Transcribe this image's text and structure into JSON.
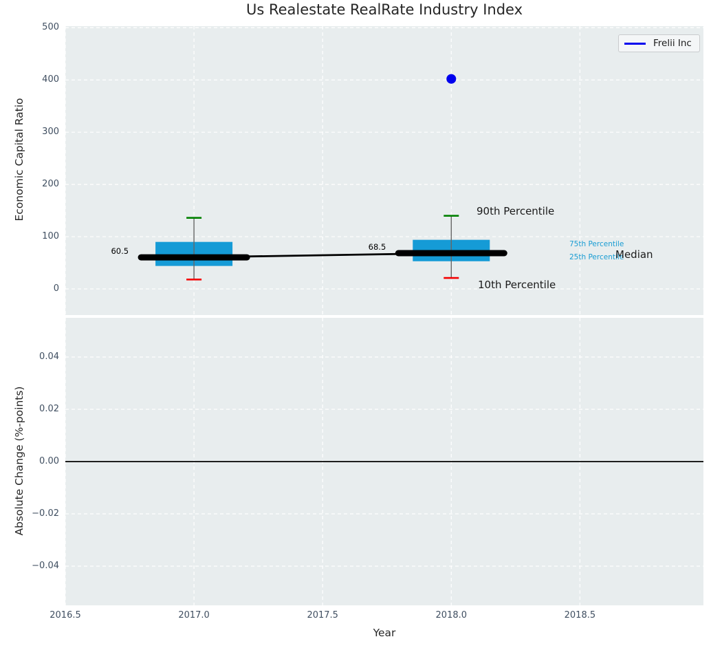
{
  "figure": {
    "title": "Us Realestate RealRate Industry Index",
    "legend": {
      "label": "Frelii Inc"
    }
  },
  "colors": {
    "plot_bg": "#e8edee",
    "grid": "#ffffff",
    "box_fill": "#159bd6",
    "whisker": "#666666",
    "cap_90th": "#008000",
    "cap_10th": "#f40000",
    "median": "#000000",
    "series_blue": "#0000ee",
    "annotation_blue": "#189cd3",
    "annotation_black": "#1a1a1a",
    "tick_text": "#3f4e60",
    "zero_line": "#000000"
  },
  "chart_data": {
    "type": "boxplot-line-combo",
    "title": "Us Realestate RealRate Industry Index",
    "xlabel": "Year",
    "xlim": [
      2016.5,
      2018.98
    ],
    "grid": "on",
    "legend_position": "upper right",
    "xticks": [
      {
        "v": 2016.5,
        "label": "2016.5"
      },
      {
        "v": 2017.0,
        "label": "2017.0"
      },
      {
        "v": 2017.5,
        "label": "2017.5"
      },
      {
        "v": 2018.0,
        "label": "2018.0"
      },
      {
        "v": 2018.5,
        "label": "2018.5"
      }
    ],
    "panels": [
      {
        "ylabel": "Economic Capital Ratio",
        "ylim": [
          -50,
          503
        ],
        "yticks": [
          {
            "v": 0,
            "label": "0"
          },
          {
            "v": 100,
            "label": "100"
          },
          {
            "v": 200,
            "label": "200"
          },
          {
            "v": 300,
            "label": "300"
          },
          {
            "v": 400,
            "label": "400"
          },
          {
            "v": 500,
            "label": "500"
          }
        ],
        "boxplots": [
          {
            "x": 2017,
            "p10": 18,
            "q1": 44,
            "median": 60.5,
            "q3": 90,
            "p90": 136,
            "median_label": "60.5"
          },
          {
            "x": 2018,
            "p10": 21,
            "q1": 53,
            "median": 68.5,
            "q3": 94,
            "p90": 140,
            "median_label": "68.5"
          }
        ],
        "median_trend": [
          {
            "x": 2017,
            "y": 60.5
          },
          {
            "x": 2018,
            "y": 68.5
          }
        ],
        "series": [
          {
            "name": "Frelii Inc",
            "points": [
              {
                "x": 2018,
                "y": 402
              }
            ]
          }
        ],
        "annotations": [
          {
            "id": "p90",
            "text": "90th Percentile"
          },
          {
            "id": "p10",
            "text": "10th Percentile"
          },
          {
            "id": "p75",
            "text": "75th Percentile"
          },
          {
            "id": "p25",
            "text": "25th Percentile"
          },
          {
            "id": "median",
            "text": "Median"
          }
        ]
      },
      {
        "ylabel": "Absolute Change (%-points)",
        "ylim": [
          -0.055,
          0.055
        ],
        "zero_line": 0.0,
        "yticks": [
          {
            "v": 0.04,
            "label": "0.04"
          },
          {
            "v": 0.02,
            "label": "0.02"
          },
          {
            "v": 0.0,
            "label": "0.00"
          },
          {
            "v": -0.02,
            "label": "−0.02"
          },
          {
            "v": -0.04,
            "label": "−0.04"
          }
        ]
      }
    ]
  }
}
